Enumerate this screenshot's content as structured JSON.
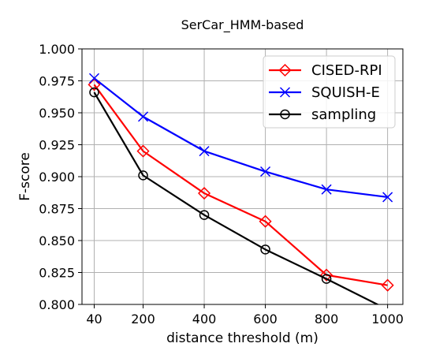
{
  "chart_data": {
    "type": "line",
    "title": "SerCar_HMM-based",
    "xlabel": "distance threshold (m)",
    "ylabel": "F-score",
    "x": [
      40,
      200,
      400,
      600,
      800,
      1000
    ],
    "xticks": [
      "40",
      "200",
      "400",
      "600",
      "800",
      "1000"
    ],
    "ylim": [
      0.8,
      1.0
    ],
    "yticks": [
      "0.800",
      "0.825",
      "0.850",
      "0.875",
      "0.900",
      "0.925",
      "0.950",
      "0.975",
      "1.000"
    ],
    "grid": true,
    "legend_position": "top-right",
    "series": [
      {
        "name": "CISED-RPI",
        "color": "#ff0000",
        "marker": "diamond",
        "values": [
          0.972,
          0.92,
          0.887,
          0.865,
          0.823,
          0.815
        ]
      },
      {
        "name": "SQUISH-E",
        "color": "#0000ff",
        "marker": "x",
        "values": [
          0.977,
          0.947,
          0.92,
          0.904,
          0.89,
          0.884
        ]
      },
      {
        "name": "sampling",
        "color": "#000000",
        "marker": "circle",
        "values": [
          0.966,
          0.901,
          0.87,
          0.843,
          0.82,
          0.796
        ]
      }
    ]
  }
}
